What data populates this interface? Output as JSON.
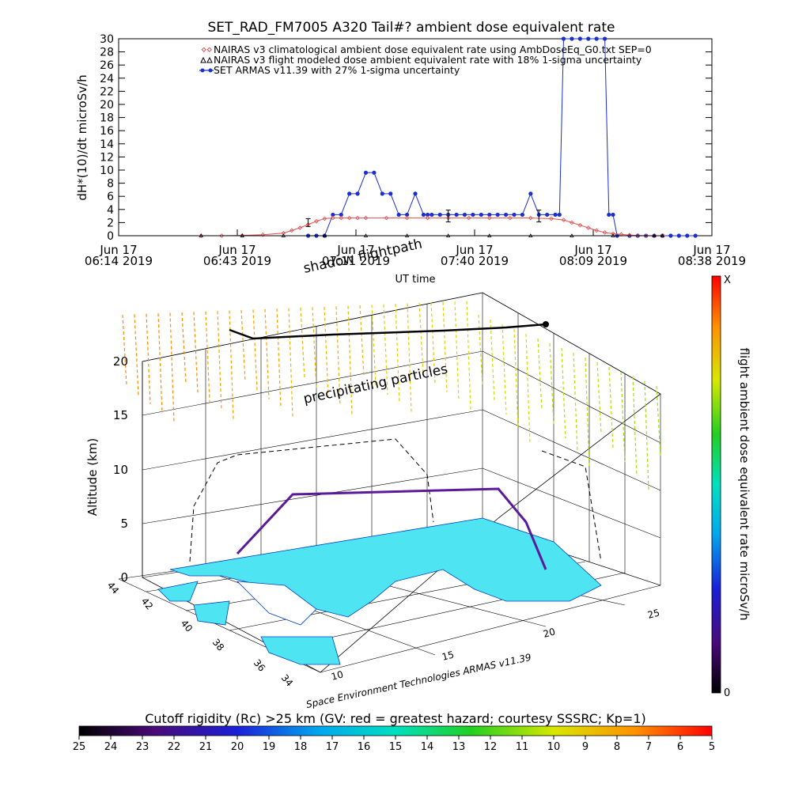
{
  "chart_data": [
    {
      "type": "line",
      "title": "SET_RAD_FM7005  A320 Tail#? ambient dose equivalent rate",
      "ylabel": "dH*(10)/dt microSv/h",
      "xlabel": "UT time",
      "ylim": [
        0,
        30
      ],
      "yticks": [
        "0",
        "2",
        "4",
        "6",
        "8",
        "10",
        "12",
        "14",
        "16",
        "18",
        "20",
        "22",
        "24",
        "26",
        "28",
        "30"
      ],
      "xticks": [
        {
          "date": "Jun 17",
          "time": "06:14 2019"
        },
        {
          "date": "Jun 17",
          "time": "06:43 2019"
        },
        {
          "date": "Jun 17",
          "time": "07:11 2019"
        },
        {
          "date": "Jun 17",
          "time": "07:40 2019"
        },
        {
          "date": "Jun 17",
          "time": "08:09 2019"
        },
        {
          "date": "Jun 17",
          "time": "08:38 2019"
        }
      ],
      "xlim_minutes": [
        0,
        144
      ],
      "legend": [
        {
          "text": "NAIRAS v3 climatological ambient dose equivalent rate using AmbDoseEq_G0.txt SEP=0",
          "color": "#e05050",
          "marker": "diamond"
        },
        {
          "text": "NAIRAS v3 flight modeled dose ambient equivalent rate with 18% 1-sigma uncertainty",
          "color": "#000000",
          "marker": "triangle"
        },
        {
          "text": "SET ARMAS v11.39 with 27% 1-sigma uncertainty",
          "color": "#1a2fd0",
          "marker": "circle"
        }
      ],
      "series": [
        {
          "name": "SET ARMAS v11.39 with 27% 1-sigma uncertainty",
          "color": "#1a2fd0",
          "x": [
            46,
            48,
            50,
            52,
            54,
            56,
            58,
            60,
            62,
            64,
            66,
            68,
            70,
            72,
            74,
            75,
            76,
            78,
            80,
            82,
            84,
            86,
            88,
            90,
            92,
            94,
            96,
            98,
            100,
            102,
            104,
            106,
            107,
            108,
            110,
            112,
            114,
            116,
            118,
            119,
            120,
            121,
            124,
            126,
            128,
            130,
            132,
            134,
            136,
            138,
            140
          ],
          "y": [
            0,
            0,
            0,
            3.2,
            3.2,
            6.4,
            6.4,
            9.6,
            9.6,
            6.4,
            6.4,
            3.2,
            3.2,
            6.4,
            3.2,
            3.2,
            3.2,
            3.2,
            3.2,
            3.2,
            3.2,
            3.2,
            3.2,
            3.2,
            3.2,
            3.2,
            3.2,
            3.2,
            6.4,
            3.2,
            3.2,
            3.2,
            3.2,
            30,
            30,
            30,
            30,
            30,
            30,
            3.2,
            3.2,
            0,
            0,
            0,
            0,
            0,
            0,
            0,
            0,
            0,
            0
          ]
        },
        {
          "name": "NAIRAS v3 climatological ambient dose equivalent rate using AmbDoseEq_G0.txt SEP=0",
          "color": "#e05050",
          "x": [
            20,
            25,
            30,
            35,
            40,
            42,
            44,
            46,
            48,
            50,
            52,
            54,
            56,
            58,
            60,
            65,
            70,
            75,
            80,
            85,
            90,
            95,
            100,
            105,
            108,
            110,
            112,
            114,
            116,
            118,
            120,
            122,
            124,
            126,
            128,
            130,
            132
          ],
          "y": [
            0,
            0,
            0.05,
            0.15,
            0.4,
            0.8,
            1.2,
            1.7,
            2.2,
            2.6,
            2.7,
            2.7,
            2.7,
            2.7,
            2.7,
            2.7,
            2.7,
            2.7,
            2.7,
            2.7,
            2.7,
            2.7,
            2.7,
            2.6,
            2.4,
            2.0,
            1.6,
            1.2,
            0.8,
            0.5,
            0.3,
            0.2,
            0.1,
            0.05,
            0,
            0,
            0
          ]
        },
        {
          "name": "NAIRAS v3 flight modeled dose ambient equivalent rate with 18% 1-sigma uncertainty",
          "color": "#000000",
          "x": [
            20,
            30,
            40,
            50,
            60,
            70,
            80,
            90,
            100,
            110,
            120,
            130,
            132
          ],
          "y": [
            0,
            0,
            0,
            0,
            0,
            0,
            0,
            0,
            0,
            0,
            0,
            0,
            0
          ]
        }
      ],
      "errorbars": [
        {
          "x": 46,
          "y": 2.0,
          "err": 0.6
        },
        {
          "x": 80,
          "y": 3.0,
          "err": 0.9
        },
        {
          "x": 102,
          "y": 3.0,
          "err": 0.9
        }
      ]
    },
    {
      "type": "scatter",
      "zlabel": "Altitude (km)",
      "zticks": [
        "0",
        "5",
        "10",
        "15",
        "20"
      ],
      "x_ticks": [
        "10",
        "15",
        "20",
        "25"
      ],
      "y_ticks": [
        "34",
        "36",
        "38",
        "40",
        "42",
        "44"
      ],
      "colorbar_label": "flight ambient dose equivalent rate microSv/h",
      "colorbar_top": "X",
      "colorbar_bottom": "0",
      "annotations": [
        "shadow flightpath",
        "precipitating particles"
      ],
      "credit": "Space Environment Technologies ARMAS v11.39"
    },
    {
      "type": "heatmap",
      "title": "Cutoff rigidity (Rc) >25 km (GV: red = greatest hazard; courtesy SSSRC; Kp=1)",
      "ticks": [
        "25",
        "24",
        "23",
        "22",
        "21",
        "20",
        "19",
        "18",
        "17",
        "16",
        "15",
        "14",
        "13",
        "12",
        "11",
        "10",
        "9",
        "8",
        "7",
        "6",
        "5"
      ]
    }
  ]
}
